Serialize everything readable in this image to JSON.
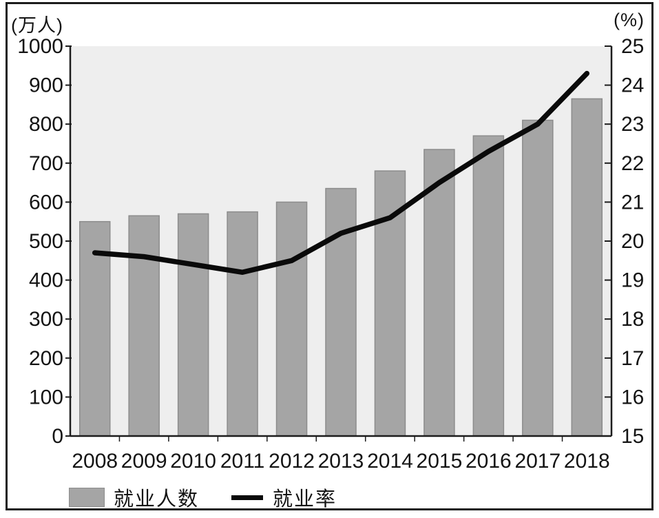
{
  "units": {
    "left": "(万人)",
    "right": "(%)"
  },
  "legend": {
    "items": [
      {
        "label": "就业人数",
        "marker": "bar-swatch"
      },
      {
        "label": "就业率",
        "marker": "line-swatch"
      }
    ]
  },
  "colors": {
    "plot_bg": "#eeeeee",
    "bar_fill": "#a5a5a5",
    "bar_stroke": "#8c8c8c",
    "line": "#0a0a0a",
    "axis": "#1c1c1c",
    "text": "#141414",
    "frame": "#1c1c1c"
  },
  "chart_data": {
    "type": "bar",
    "subtype": "bar+line combo",
    "categories": [
      "2008",
      "2009",
      "2010",
      "2011",
      "2012",
      "2013",
      "2014",
      "2015",
      "2016",
      "2017",
      "2018"
    ],
    "series": [
      {
        "name": "就业人数",
        "type": "bar",
        "axis": "left",
        "unit": "万人",
        "values": [
          550,
          565,
          570,
          575,
          600,
          635,
          680,
          735,
          770,
          810,
          865
        ]
      },
      {
        "name": "就业率",
        "type": "line",
        "axis": "right",
        "unit": "%",
        "values": [
          19.7,
          19.6,
          19.4,
          19.2,
          19.5,
          20.2,
          20.6,
          21.5,
          22.3,
          23.0,
          24.3
        ]
      }
    ],
    "left_axis": {
      "label": "(万人)",
      "min": 0,
      "max": 1000,
      "step": 100
    },
    "right_axis": {
      "label": "(%)",
      "min": 15,
      "max": 25,
      "step": 1
    },
    "xlabel": "",
    "title": "",
    "grid": false,
    "legend_position": "bottom-left"
  }
}
